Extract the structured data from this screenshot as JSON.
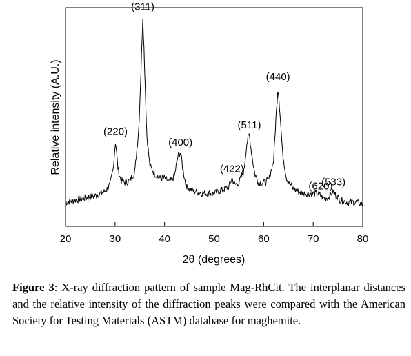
{
  "chart_data": {
    "type": "line",
    "xlabel": "2θ (degrees)",
    "ylabel": "Relative intensity (A.U.)",
    "xlim": [
      20,
      80
    ],
    "ylim": [
      0,
      100
    ],
    "xticks": [
      20,
      30,
      40,
      50,
      60,
      70,
      80
    ],
    "grid": false,
    "series": [
      {
        "x": [
          20,
          22,
          24,
          26,
          28,
          29,
          29.6,
          30.1,
          30.6,
          31.2,
          32,
          33,
          34,
          34.8,
          35.3,
          35.6,
          35.9,
          36.4,
          37,
          38,
          39,
          40,
          41,
          42,
          42.7,
          43.2,
          43.7,
          44.4,
          46,
          48,
          50,
          52,
          53,
          53.6,
          54.2,
          55,
          56,
          56.6,
          57.1,
          57.6,
          58.2,
          59,
          60,
          61,
          62,
          62.5,
          62.9,
          63.3,
          63.8,
          64.6,
          66,
          68,
          70,
          71,
          71.5,
          72,
          73,
          73.6,
          74.1,
          74.6,
          75.5,
          77,
          78.5,
          80
        ],
        "y": [
          11,
          12,
          13,
          14,
          16,
          19,
          26,
          39,
          26,
          21,
          20,
          21,
          25,
          45,
          75,
          96,
          78,
          42,
          28,
          24,
          22,
          22,
          20,
          23,
          32,
          34,
          26,
          18,
          16,
          15,
          15,
          17,
          18,
          22,
          19,
          20,
          25,
          38,
          42,
          33,
          24,
          20,
          20,
          21,
          30,
          50,
          64,
          52,
          34,
          22,
          17,
          15,
          15,
          15,
          14,
          13,
          13,
          15,
          16,
          14,
          12,
          11,
          11,
          10
        ]
      }
    ],
    "annotations": [
      {
        "text": "(220)",
        "x": 30.1,
        "y": 39
      },
      {
        "text": "(311)",
        "x": 35.6,
        "y": 96
      },
      {
        "text": "(400)",
        "x": 43.2,
        "y": 34
      },
      {
        "text": "(422)",
        "x": 53.6,
        "y": 22
      },
      {
        "text": "(511)",
        "x": 57.1,
        "y": 42
      },
      {
        "text": "(440)",
        "x": 62.9,
        "y": 64
      },
      {
        "text": "(620)",
        "x": 71.5,
        "y": 14
      },
      {
        "text": "(533)",
        "x": 74.1,
        "y": 16
      }
    ]
  },
  "caption": {
    "label": "Figure 3",
    "text": ": X-ray diffraction pattern of sample Mag-RhCit. The interplanar distances and the relative intensity of the diffraction peaks were compared with the American Society for Testing Materials (ASTM) database for maghemite."
  }
}
